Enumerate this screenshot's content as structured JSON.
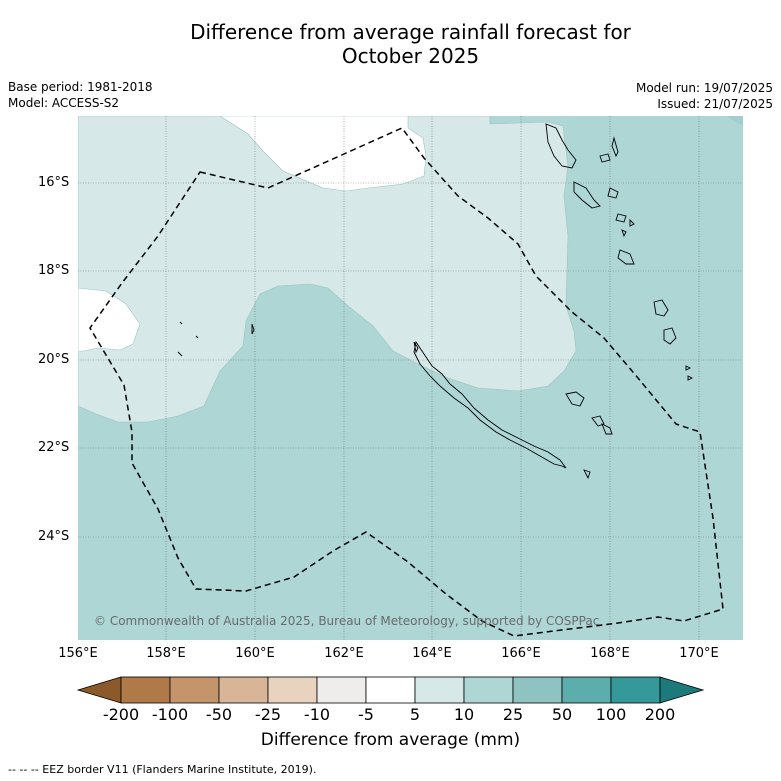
{
  "title_line1": "Difference from average rainfall forecast for",
  "title_line2": "October 2025",
  "base_period": "Base period: 1981-2018",
  "model": "Model: ACCESS-S2",
  "model_run": "Model run: 19/07/2025",
  "issued": "Issued: 21/07/2025",
  "lat_labels": [
    "16°S",
    "18°S",
    "20°S",
    "22°S",
    "24°S"
  ],
  "lon_labels": [
    "156°E",
    "158°E",
    "160°E",
    "162°E",
    "164°E",
    "166°E",
    "168°E",
    "170°E"
  ],
  "copyright": "© Commonwealth of Australia 2025, Bureau of Meteorology, supported by COSPPac",
  "colorbar": {
    "ticks": [
      "-200",
      "-100",
      "-50",
      "-25",
      "-10",
      "-5",
      "5",
      "10",
      "25",
      "50",
      "100",
      "200"
    ],
    "colors": [
      "#8c5a2a",
      "#b07a48",
      "#c4956a",
      "#d7b596",
      "#e8d3bf",
      "#efedeb",
      "#ffffff",
      "#d6e8e7",
      "#add6d5",
      "#8fc3c1",
      "#5caeac",
      "#35999a",
      "#1d7a7a"
    ],
    "label": "Difference from average (mm)"
  },
  "legend_note": "--  --  -- EEZ border V11 (Flanders Marine Institute, 2019)."
}
